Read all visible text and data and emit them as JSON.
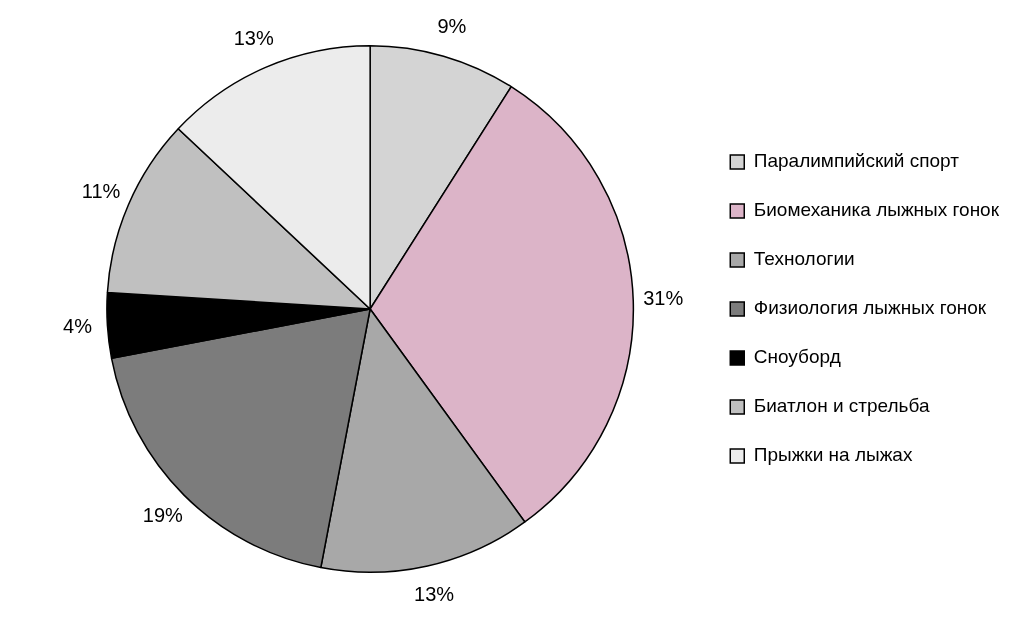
{
  "chart_data": {
    "type": "pie",
    "categories": [
      "Паралимпийский спорт",
      "Биомеханика лыжных гонок",
      "Технологии",
      "Физиология лыжных гонок",
      "Сноуборд",
      "Биатлон и стрельба",
      "Прыжки на лыжах"
    ],
    "values": [
      9,
      31,
      13,
      19,
      4,
      11,
      13
    ],
    "colors": [
      "#d4d4d4",
      "#dcb4c8",
      "#a8a8a8",
      "#7c7c7c",
      "#000000",
      "#c0c0c0",
      "#ececec"
    ],
    "value_labels": [
      "9%",
      "31%",
      "13%",
      "19%",
      "4%",
      "11%",
      "13%"
    ],
    "legend": "right"
  }
}
